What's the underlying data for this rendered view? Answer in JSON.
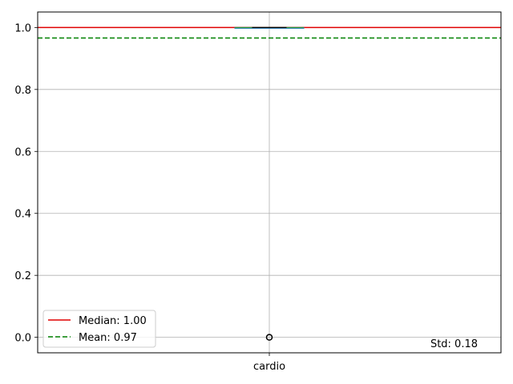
{
  "chart_data": {
    "type": "box",
    "categories": [
      "cardio"
    ],
    "box": {
      "q1": 1.0,
      "median": 1.0,
      "q3": 1.0,
      "whisker_low": 1.0,
      "whisker_high": 1.0,
      "outliers": [
        0.0
      ]
    },
    "ylim": [
      -0.05,
      1.05
    ],
    "yticks": [
      0.0,
      0.2,
      0.4,
      0.6,
      0.8,
      1.0
    ],
    "ytick_labels": [
      "0.0",
      "0.2",
      "0.4",
      "0.6",
      "0.8",
      "1.0"
    ],
    "grid": true,
    "reference_lines": [
      {
        "name": "Median: 1.00",
        "value": 1.0,
        "color": "#e00000",
        "style": "solid"
      },
      {
        "name": "Mean: 0.97",
        "value": 0.966,
        "color": "#008000",
        "style": "dashed"
      }
    ],
    "legend": {
      "position": "lower-left"
    },
    "annotation": {
      "text": "Std: 0.18",
      "color": "#0000ff",
      "position": "lower-right"
    }
  }
}
